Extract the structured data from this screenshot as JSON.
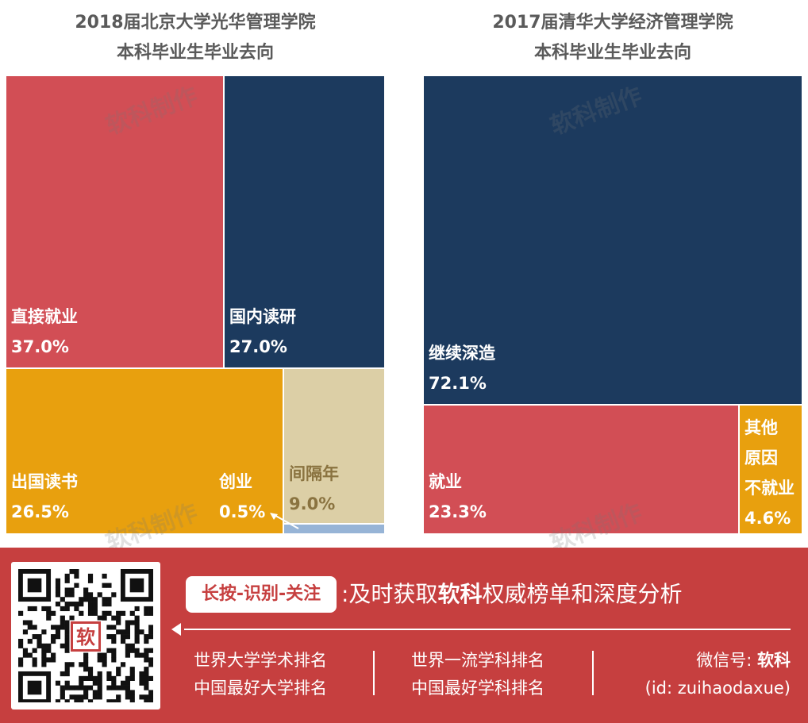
{
  "chart_data": [
    {
      "type": "treemap",
      "title_lines": [
        "2018届北京大学光华管理学院",
        "本科毕业生毕业去向"
      ],
      "items": [
        {
          "label": "直接就业",
          "value": 37.0,
          "value_label": "37.0%",
          "color": "#d24e55",
          "text_color": "#ffffff"
        },
        {
          "label": "国内读研",
          "value": 27.0,
          "value_label": "27.0%",
          "color": "#1c3a5e",
          "text_color": "#ffffff"
        },
        {
          "label": "出国读书",
          "value": 26.5,
          "value_label": "26.5%",
          "color": "#e8a00e",
          "text_color": "#ffffff"
        },
        {
          "label": "间隔年",
          "value": 9.0,
          "value_label": "9.0%",
          "color": "#dccfa6",
          "text_color": "#8a7340"
        },
        {
          "label": "创业",
          "value": 0.5,
          "value_label": "0.5%",
          "color": "#97b4d6",
          "text_color": "#ffffff"
        }
      ]
    },
    {
      "type": "treemap",
      "title_lines": [
        "2017届清华大学经济管理学院",
        "本科毕业生毕业去向"
      ],
      "items": [
        {
          "label": "继续深造",
          "value": 72.1,
          "value_label": "72.1%",
          "color": "#1c3a5e",
          "text_color": "#ffffff"
        },
        {
          "label": "就业",
          "value": 23.3,
          "value_label": "23.3%",
          "color": "#d24e55",
          "text_color": "#ffffff"
        },
        {
          "label_lines": [
            "其他",
            "原因",
            "不就业"
          ],
          "value": 4.6,
          "value_label": "4.6%",
          "color": "#e8a00e",
          "text_color": "#ffffff"
        }
      ]
    }
  ],
  "watermark": "软科制作",
  "footer": {
    "cta": "长按-识别-关注",
    "slogan_prefix": ":及时获取",
    "slogan_brand": "软科",
    "slogan_suffix": "权威榜单和深度分析",
    "links_col1": [
      "世界大学学术排名",
      "中国最好大学排名"
    ],
    "links_col2": [
      "世界一流学科排名",
      "中国最好学科排名"
    ],
    "wechat_label": "微信号: ",
    "wechat_name": "软科",
    "wechat_id": "(id: zuihaodaxue)",
    "qr_logo_text": "软"
  },
  "colors": {
    "footer_bg": "#c63f3f",
    "title_text": "#5a5a5a"
  }
}
